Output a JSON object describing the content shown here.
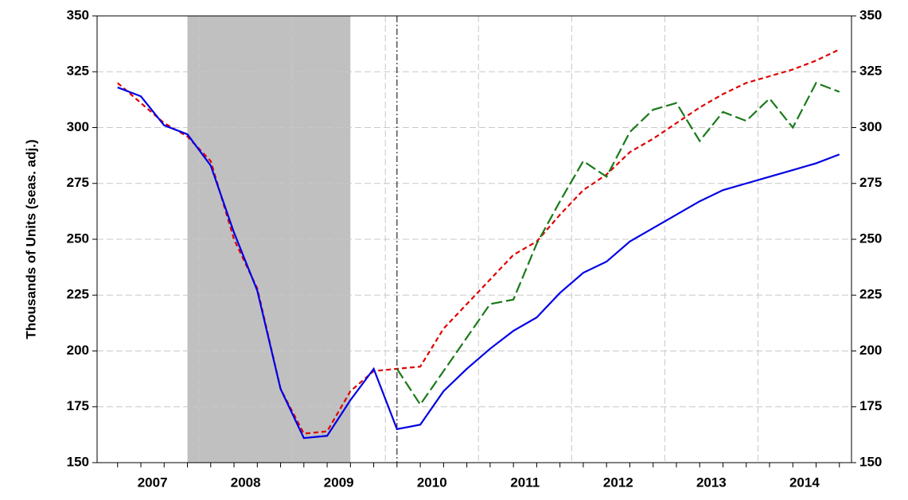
{
  "chart_data": {
    "type": "line",
    "y_label": "Thousands  of Units (seas. adj.)",
    "x": [
      2007.0,
      2007.25,
      2007.5,
      2007.75,
      2008.0,
      2008.25,
      2008.5,
      2008.75,
      2009.0,
      2009.25,
      2009.5,
      2009.75,
      2010.0,
      2010.25,
      2010.5,
      2010.75,
      2011.0,
      2011.25,
      2011.5,
      2011.75,
      2012.0,
      2012.25,
      2012.5,
      2012.75,
      2013.0,
      2013.25,
      2013.5,
      2013.75,
      2014.0,
      2014.25,
      2014.5,
      2014.75
    ],
    "series": [
      {
        "color": "#e00000",
        "dash": "6,4",
        "values": [
          320,
          311,
          302,
          296,
          285,
          250,
          228,
          183,
          163,
          164,
          182,
          191,
          192,
          193,
          210,
          221,
          232,
          243,
          249,
          261,
          272,
          279,
          289,
          295,
          302,
          309,
          315,
          320,
          323,
          326,
          330,
          335
        ]
      },
      {
        "color": "#1a7a1a",
        "dash": "14,5",
        "values": [
          null,
          null,
          null,
          null,
          null,
          null,
          null,
          null,
          null,
          null,
          null,
          null,
          192,
          176,
          191,
          206,
          221,
          223,
          248,
          267,
          285,
          278,
          298,
          308,
          311,
          294,
          307,
          303,
          313,
          300,
          320,
          316
        ]
      },
      {
        "color": "#0000e6",
        "dash": "",
        "values": [
          318,
          314,
          301,
          297,
          283,
          253,
          227,
          183,
          161,
          162,
          178,
          192,
          165,
          167,
          182,
          192,
          201,
          209,
          215,
          226,
          235,
          240,
          249,
          255,
          261,
          267,
          272,
          275,
          278,
          281,
          284,
          288
        ]
      }
    ],
    "shade": [
      2007.75,
      2009.5
    ],
    "vline": 2010.0,
    "xlim": [
      2006.78,
      2014.88
    ],
    "xticks": [
      {
        "value": 2007.375,
        "label": "2007"
      },
      {
        "value": 2008.375,
        "label": "2008"
      },
      {
        "value": 2009.375,
        "label": "2009"
      },
      {
        "value": 2010.375,
        "label": "2010"
      },
      {
        "value": 2011.375,
        "label": "2011"
      },
      {
        "value": 2012.375,
        "label": "2012"
      },
      {
        "value": 2013.375,
        "label": "2013"
      },
      {
        "value": 2014.375,
        "label": "2014"
      }
    ],
    "ylim": [
      150,
      350
    ],
    "yticks": [
      150,
      175,
      200,
      225,
      250,
      275,
      300,
      325,
      350
    ],
    "grid": true
  }
}
